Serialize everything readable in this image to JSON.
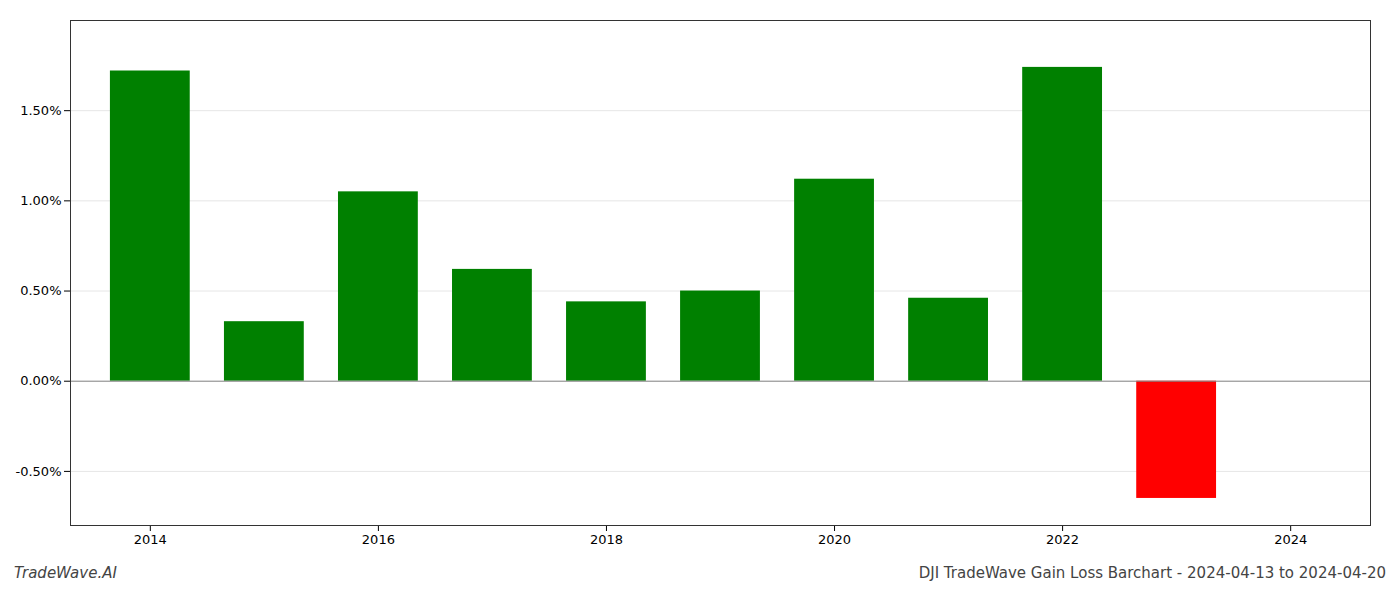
{
  "chart_data": {
    "type": "bar",
    "title": "DJI TradeWave Gain Loss Barchart - 2024-04-13 to 2024-04-20",
    "annotations": [
      "TradeWave.AI"
    ],
    "x": [
      2014,
      2015,
      2016,
      2017,
      2018,
      2019,
      2020,
      2021,
      2022,
      2023
    ],
    "values": [
      1.72,
      0.33,
      1.05,
      0.62,
      0.44,
      0.5,
      1.12,
      0.46,
      1.74,
      -0.65
    ],
    "colors": [
      "#008000",
      "#008000",
      "#008000",
      "#008000",
      "#008000",
      "#008000",
      "#008000",
      "#008000",
      "#008000",
      "#ff0000"
    ],
    "xlim": [
      2013.3,
      2024.7
    ],
    "xticks": [
      2014,
      2016,
      2018,
      2020,
      2022,
      2024
    ],
    "ylim": [
      -0.8,
      2.0
    ],
    "yticks": [
      {
        "value": -0.5,
        "label": "-0.50%"
      },
      {
        "value": 0.0,
        "label": "0.00%"
      },
      {
        "value": 0.5,
        "label": "0.50%"
      },
      {
        "value": 1.0,
        "label": "1.00%"
      },
      {
        "value": 1.5,
        "label": "1.50%"
      }
    ],
    "grid": true
  }
}
